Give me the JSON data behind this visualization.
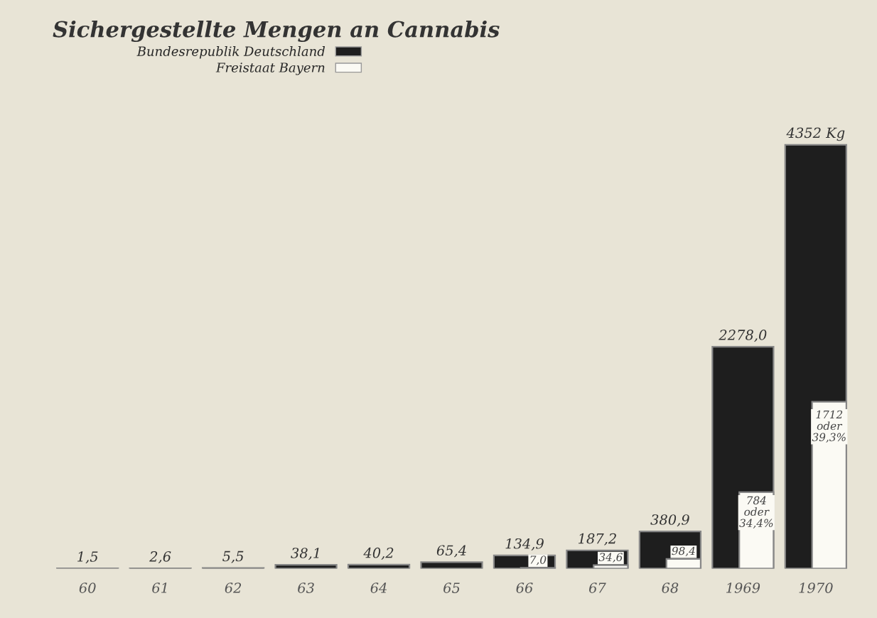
{
  "chart_data": {
    "type": "bar",
    "title": "Sichergestellte Mengen an Cannabis",
    "categories": [
      "60",
      "61",
      "62",
      "63",
      "64",
      "65",
      "66",
      "67",
      "68",
      "1969",
      "1970"
    ],
    "series": [
      {
        "name": "Bundesrepublik Deutschland",
        "color": "#1e1e1e",
        "values": [
          1.5,
          2.6,
          5.5,
          38.1,
          40.2,
          65.4,
          134.9,
          187.2,
          380.9,
          2278,
          4352
        ],
        "value_labels": [
          "1,5",
          "2,6",
          "5,5",
          "38,1",
          "40,2",
          "65,4",
          "134,9",
          "187,2",
          "380,9",
          "2278,0",
          "4352 Kg"
        ]
      },
      {
        "name": "Freistaat Bayern",
        "color": "#fbfaf4",
        "values": [
          null,
          null,
          null,
          null,
          null,
          null,
          7,
          34.6,
          98.4,
          784,
          1712
        ],
        "value_labels": [
          null,
          null,
          null,
          null,
          null,
          null,
          "7,0",
          "34,6",
          "98,4",
          "784\noder\n34,4%",
          "1712\noder\n39,3%"
        ]
      }
    ],
    "tick_labels": "x",
    "legend": "top left",
    "grid": false
  }
}
